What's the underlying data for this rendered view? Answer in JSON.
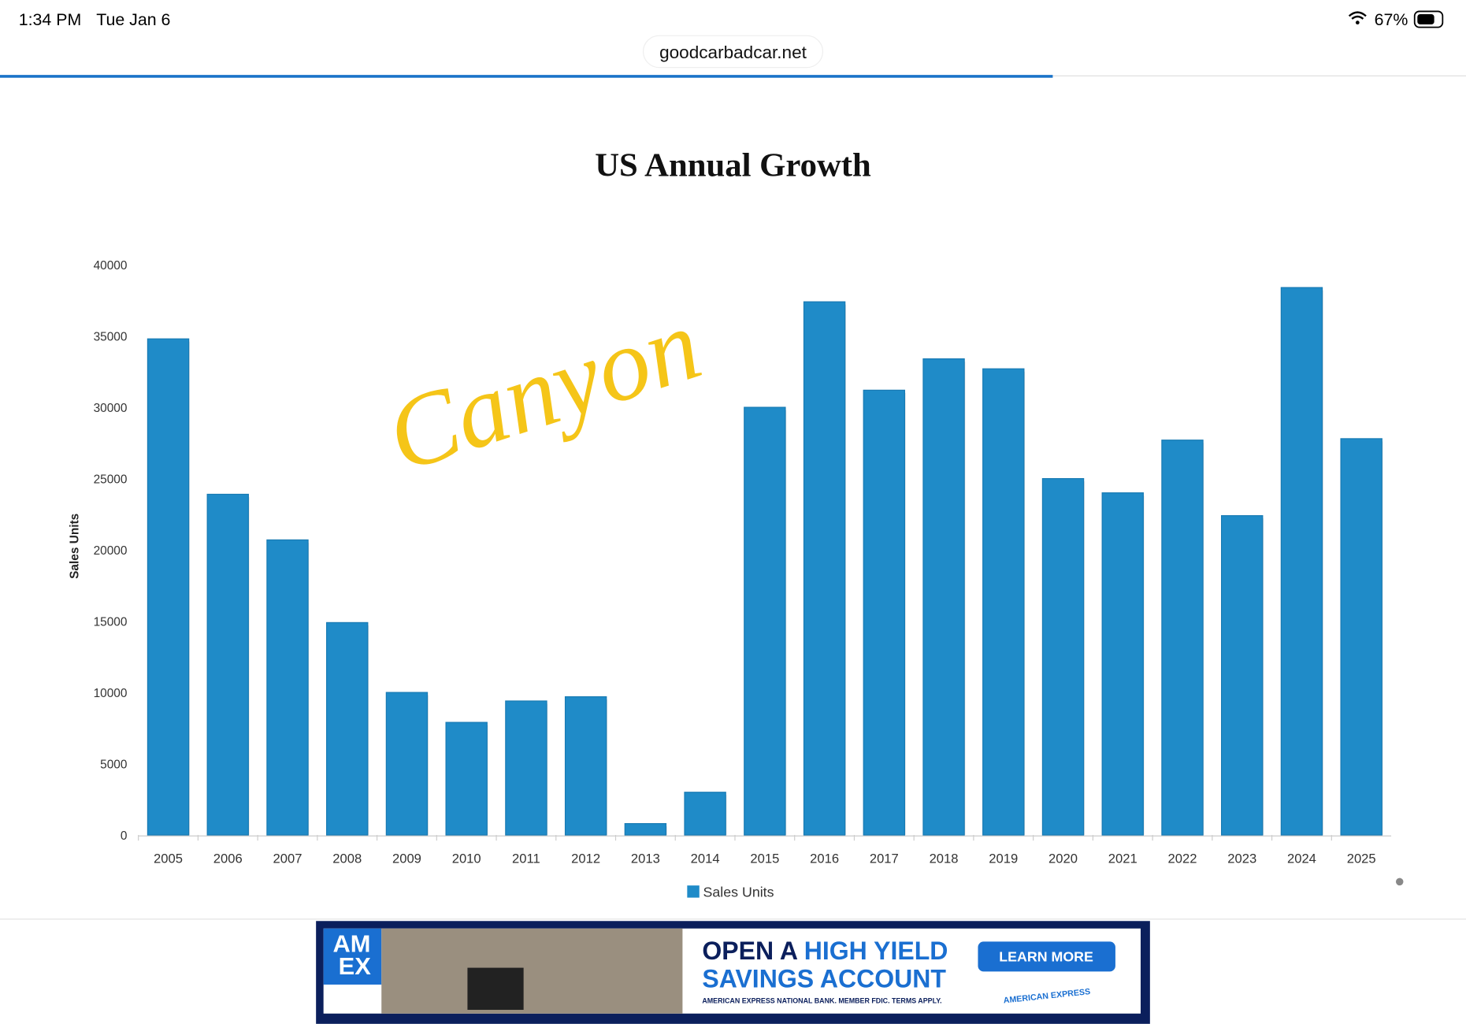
{
  "status_bar": {
    "time": "1:34 PM",
    "date": "Tue Jan 6",
    "battery": "67%"
  },
  "browser": {
    "url": "goodcarbadcar.net"
  },
  "chart_data": {
    "type": "bar",
    "title": "US Annual Growth",
    "y_label": "Sales Units",
    "categories": [
      "2005",
      "2006",
      "2007",
      "2008",
      "2009",
      "2010",
      "2011",
      "2012",
      "2013",
      "2014",
      "2015",
      "2016",
      "2017",
      "2018",
      "2019",
      "2020",
      "2021",
      "2022",
      "2023",
      "2024",
      "2025"
    ],
    "series": [
      {
        "name": "Sales Units",
        "color": "#1f8bc8",
        "values": [
          34800,
          23900,
          20700,
          14900,
          10000,
          7900,
          9400,
          9700,
          800,
          3000,
          30000,
          37400,
          31200,
          33400,
          32700,
          25000,
          24000,
          27700,
          22400,
          38400,
          27800
        ]
      }
    ],
    "ylim": [
      0,
      40000
    ],
    "yticks": [
      0,
      5000,
      10000,
      15000,
      20000,
      25000,
      30000,
      35000,
      40000
    ],
    "grid": false,
    "legend": "bottom"
  },
  "annotation": "Canyon",
  "ad": {
    "logo_top": "AM",
    "logo_bottom": "EX",
    "headline_a": "OPEN A",
    "headline_b": "HIGH YIELD",
    "headline_c": "SAVINGS ACCOUNT",
    "button": "LEARN MORE",
    "disclaimer": "AMERICAN EXPRESS NATIONAL BANK. MEMBER FDIC. TERMS APPLY.",
    "badge": "AMERICAN EXPRESS"
  }
}
